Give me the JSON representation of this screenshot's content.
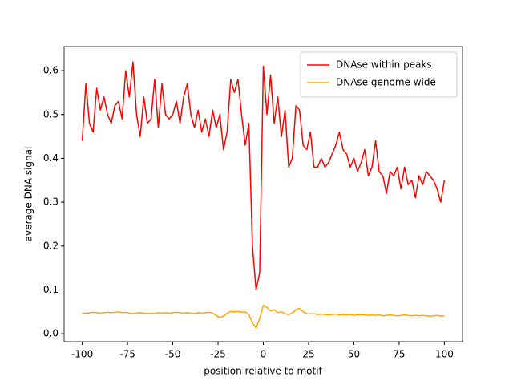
{
  "chart_data": {
    "type": "line",
    "xlabel": "position relative to motif",
    "ylabel": "average DNA signal",
    "x": [
      -100,
      -98,
      -96,
      -94,
      -92,
      -90,
      -88,
      -86,
      -84,
      -82,
      -80,
      -78,
      -76,
      -74,
      -72,
      -70,
      -68,
      -66,
      -64,
      -62,
      -60,
      -58,
      -56,
      -54,
      -52,
      -50,
      -48,
      -46,
      -44,
      -42,
      -40,
      -38,
      -36,
      -34,
      -32,
      -30,
      -28,
      -26,
      -24,
      -22,
      -20,
      -18,
      -16,
      -14,
      -12,
      -10,
      -8,
      -6,
      -4,
      -2,
      0,
      2,
      4,
      6,
      8,
      10,
      12,
      14,
      16,
      18,
      20,
      22,
      24,
      26,
      28,
      30,
      32,
      34,
      36,
      38,
      40,
      42,
      44,
      46,
      48,
      50,
      52,
      54,
      56,
      58,
      60,
      62,
      64,
      66,
      68,
      70,
      72,
      74,
      76,
      78,
      80,
      82,
      84,
      86,
      88,
      90,
      92,
      94,
      96,
      98,
      100
    ],
    "series": [
      {
        "name": "DNAse within peaks",
        "color": "#ff0000",
        "values": [
          0.44,
          0.57,
          0.48,
          0.46,
          0.56,
          0.51,
          0.54,
          0.5,
          0.48,
          0.52,
          0.53,
          0.49,
          0.6,
          0.54,
          0.62,
          0.5,
          0.45,
          0.54,
          0.48,
          0.49,
          0.58,
          0.47,
          0.57,
          0.5,
          0.49,
          0.5,
          0.53,
          0.48,
          0.54,
          0.57,
          0.5,
          0.47,
          0.51,
          0.46,
          0.49,
          0.45,
          0.51,
          0.47,
          0.5,
          0.42,
          0.46,
          0.58,
          0.55,
          0.58,
          0.5,
          0.43,
          0.48,
          0.2,
          0.1,
          0.14,
          0.61,
          0.5,
          0.59,
          0.48,
          0.54,
          0.45,
          0.51,
          0.38,
          0.4,
          0.52,
          0.51,
          0.43,
          0.42,
          0.46,
          0.38,
          0.38,
          0.4,
          0.38,
          0.39,
          0.41,
          0.43,
          0.46,
          0.42,
          0.41,
          0.38,
          0.4,
          0.37,
          0.39,
          0.42,
          0.36,
          0.38,
          0.44,
          0.37,
          0.36,
          0.32,
          0.37,
          0.36,
          0.38,
          0.33,
          0.38,
          0.34,
          0.35,
          0.31,
          0.36,
          0.34,
          0.37,
          0.36,
          0.35,
          0.33,
          0.3,
          0.35
        ]
      },
      {
        "name": "DNAse genome wide",
        "color": "#ffa500",
        "values": [
          0.047,
          0.047,
          0.048,
          0.049,
          0.048,
          0.047,
          0.048,
          0.049,
          0.048,
          0.049,
          0.05,
          0.048,
          0.049,
          0.047,
          0.046,
          0.047,
          0.048,
          0.047,
          0.046,
          0.047,
          0.046,
          0.048,
          0.047,
          0.048,
          0.047,
          0.048,
          0.049,
          0.048,
          0.047,
          0.048,
          0.047,
          0.046,
          0.048,
          0.047,
          0.048,
          0.049,
          0.047,
          0.042,
          0.037,
          0.04,
          0.047,
          0.051,
          0.05,
          0.051,
          0.049,
          0.05,
          0.044,
          0.025,
          0.013,
          0.035,
          0.065,
          0.06,
          0.052,
          0.055,
          0.048,
          0.05,
          0.046,
          0.044,
          0.047,
          0.055,
          0.058,
          0.05,
          0.046,
          0.045,
          0.046,
          0.044,
          0.045,
          0.044,
          0.043,
          0.044,
          0.045,
          0.043,
          0.044,
          0.043,
          0.044,
          0.042,
          0.043,
          0.044,
          0.043,
          0.042,
          0.043,
          0.042,
          0.043,
          0.041,
          0.042,
          0.043,
          0.042,
          0.041,
          0.042,
          0.043,
          0.042,
          0.041,
          0.042,
          0.041,
          0.042,
          0.041,
          0.04,
          0.041,
          0.042,
          0.04,
          0.041
        ]
      }
    ],
    "xlim": [
      -110,
      110
    ],
    "xticks": [
      -100,
      -75,
      -50,
      -25,
      0,
      25,
      50,
      75,
      100
    ],
    "ylim": [
      -0.018,
      0.655
    ],
    "yticks": [
      {
        "value": 0,
        "label": "0.0"
      },
      0.1,
      0.2,
      0.3,
      0.4,
      0.5,
      0.6
    ],
    "legend": "upper right",
    "grid": false
  }
}
